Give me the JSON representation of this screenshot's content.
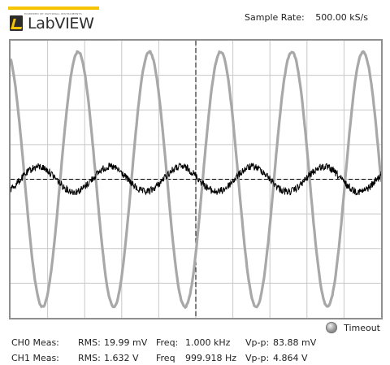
{
  "app": {
    "logo": {
      "small_text": "powered by national instruments",
      "name": "LabVIEW"
    },
    "sample_rate": {
      "label": "Sample Rate:",
      "value": "500.00 kS/s"
    }
  },
  "scope": {
    "grid_divisions": {
      "x": 10,
      "y": 8
    },
    "colors": {
      "ch0": "#000000",
      "ch1": "#a8a8a8",
      "grid": "#c8c8c8",
      "border": "#8f8f8f"
    }
  },
  "timeout": {
    "label": "Timeout",
    "state": "off"
  },
  "measurements": [
    {
      "label": "CH0 Meas:",
      "rms_label": "RMS:",
      "rms_value": "19.99 mV",
      "freq_label": "Freq:",
      "freq_value": "1.000 kHz",
      "vpp_label": "Vp-p:",
      "vpp_value": "83.88 mV"
    },
    {
      "label": "CH1 Meas:",
      "rms_label": "RMS:",
      "rms_value": "1.632 V",
      "freq_label": "Freq",
      "freq_value": "999.918 Hz",
      "vpp_label": "Vp-p:",
      "vpp_value": "4.864 V"
    }
  ]
}
